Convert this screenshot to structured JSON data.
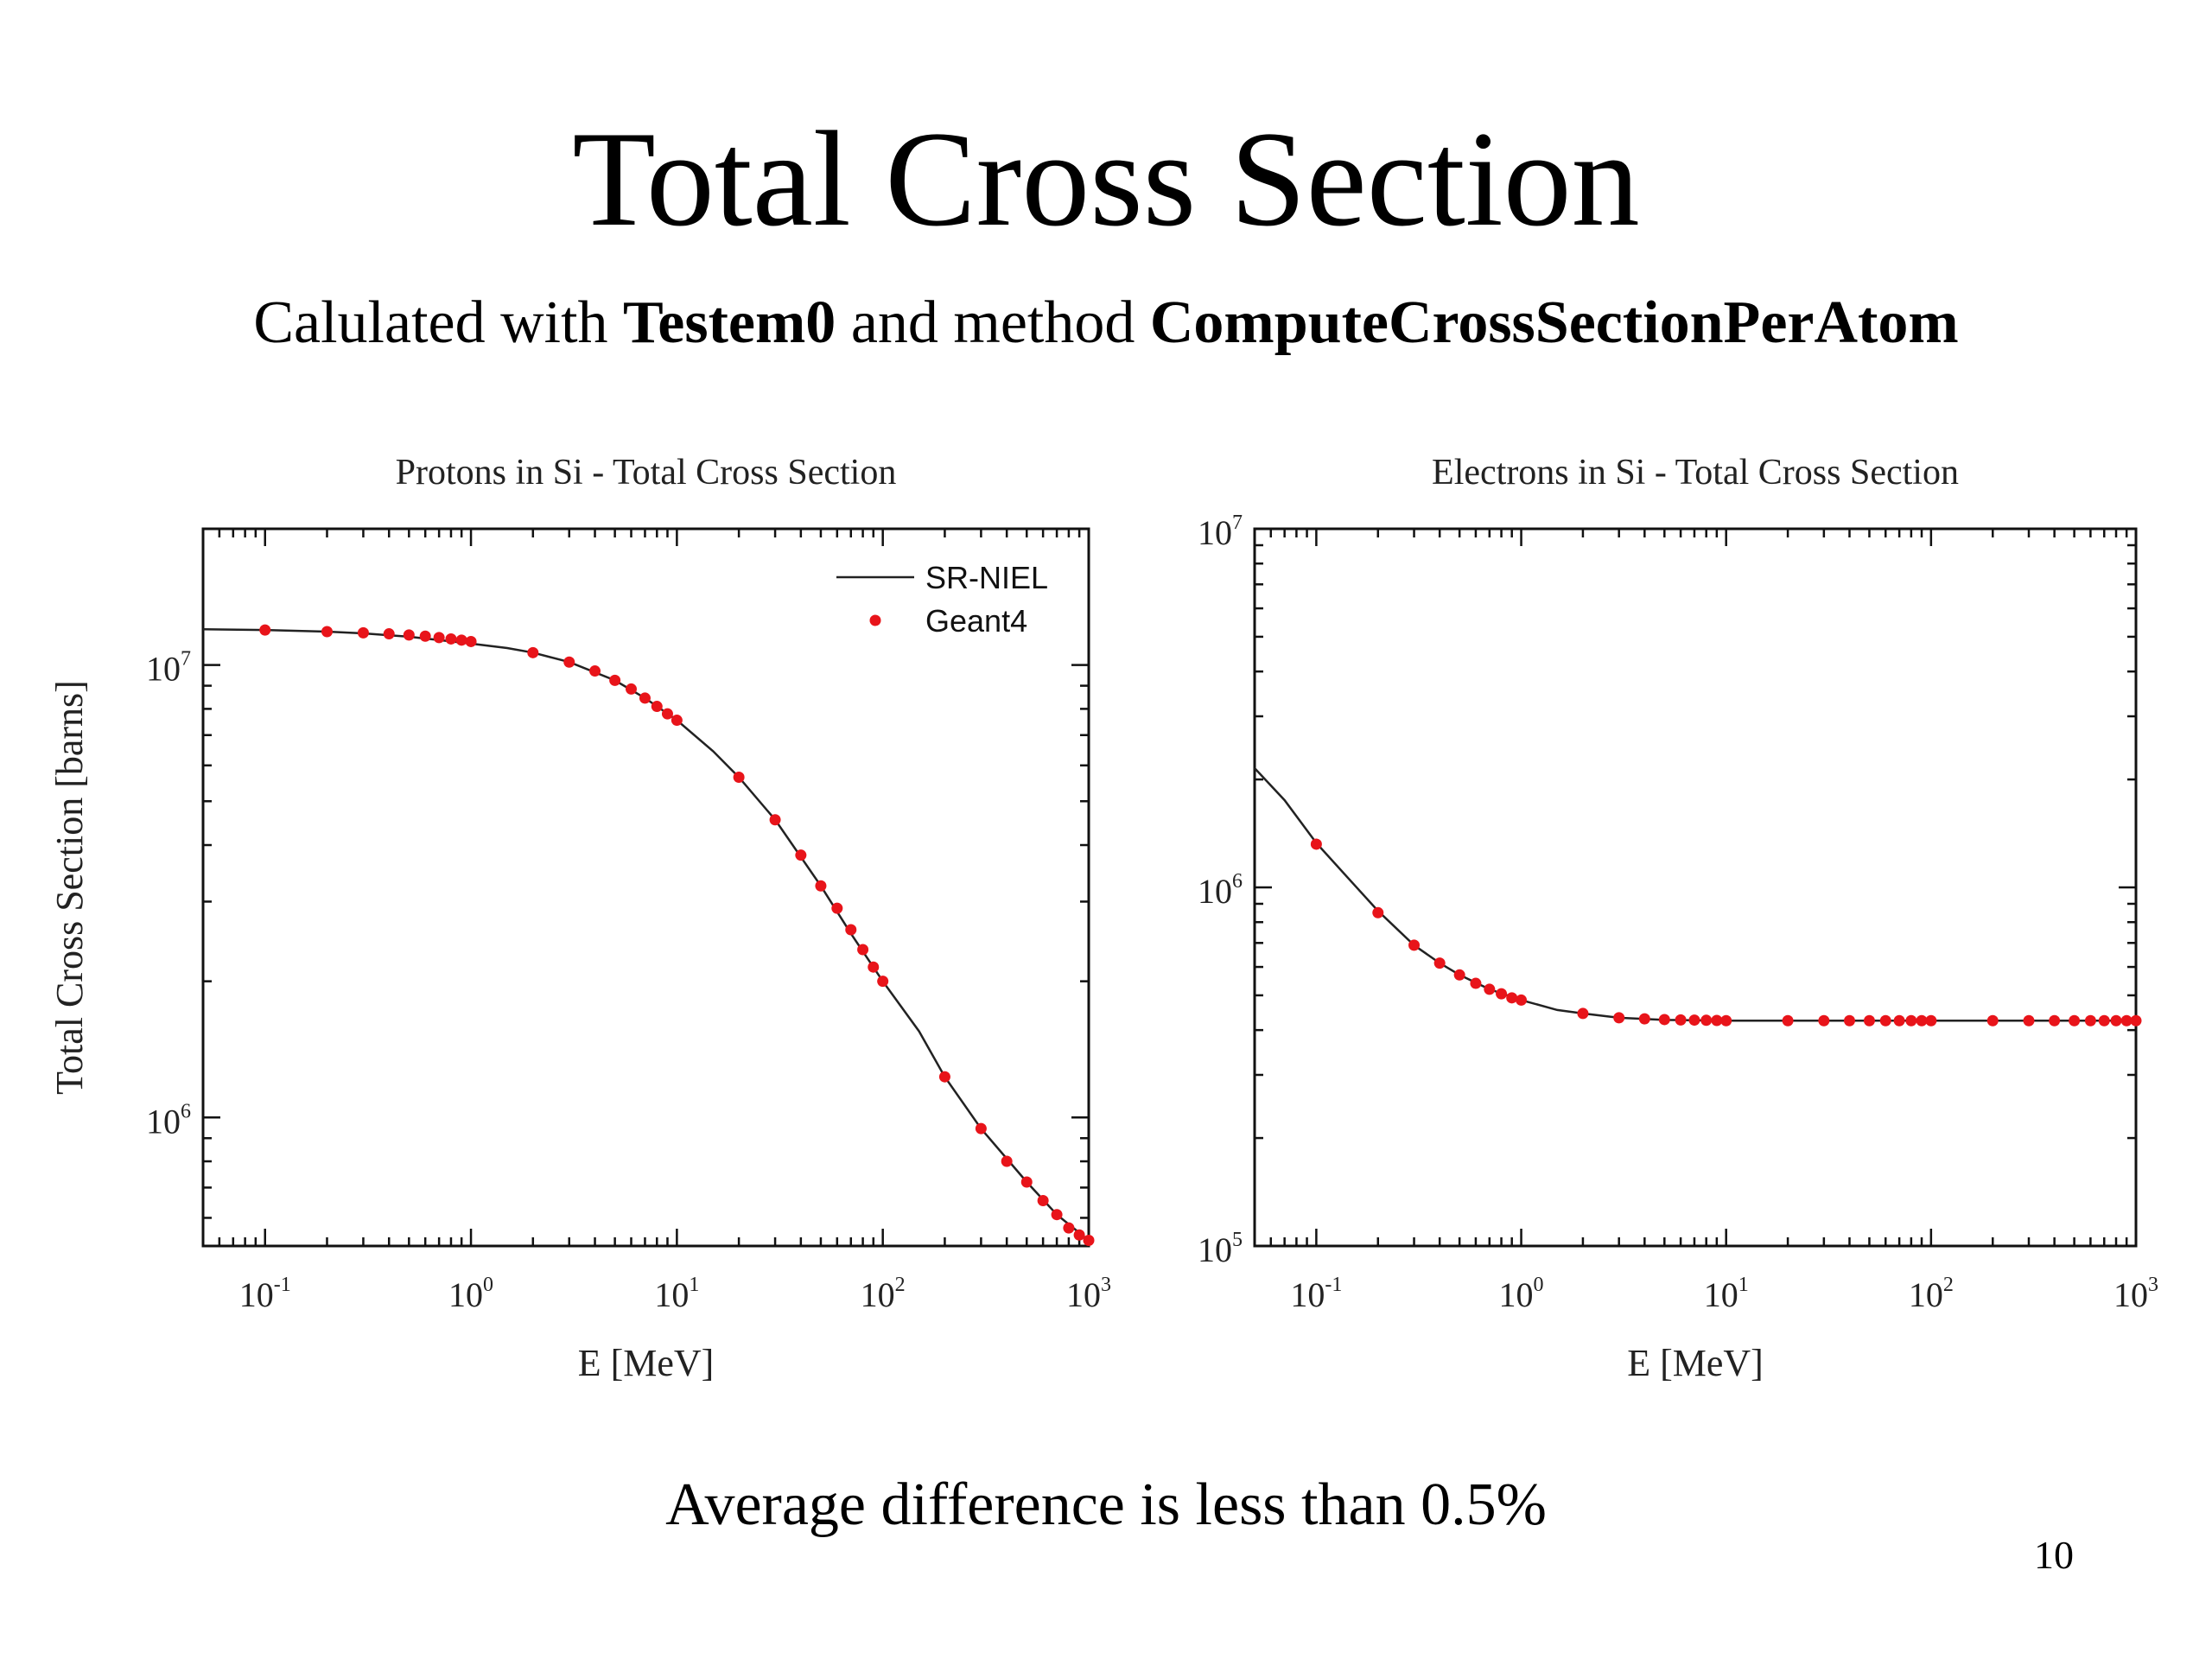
{
  "slide": {
    "title": "Total Cross Section",
    "subtitle": {
      "prefix": "Calulated with ",
      "tool": "Testem0",
      "middle": " and method ",
      "method": "ComputeCrossSectionPerAtom"
    },
    "footer": "Average difference is less than 0.5%",
    "page_number": "10"
  },
  "colors": {
    "curve": "#222222",
    "points": "#e8141a",
    "axes": "#111111"
  },
  "chart_data": [
    {
      "type": "line",
      "title": "Protons in Si - Total Cross Section",
      "xlabel": "E [MeV]",
      "ylabel": "Total Cross Section [barns]",
      "x_scale": "log",
      "y_scale": "log",
      "xlim": [
        0.05,
        1000
      ],
      "ylim": [
        520000,
        20000000
      ],
      "x_ticks": [
        0.1,
        1,
        10,
        100,
        1000
      ],
      "x_tick_labels": [
        [
          "10",
          "-1"
        ],
        [
          "10",
          "0"
        ],
        [
          "10",
          "1"
        ],
        [
          "10",
          "2"
        ],
        [
          "10",
          "3"
        ]
      ],
      "y_ticks": [
        1000000,
        10000000
      ],
      "y_tick_labels": [
        [
          "10",
          "6"
        ],
        [
          "10",
          "7"
        ]
      ],
      "legend": {
        "position": "top-right",
        "entries": [
          {
            "label": "SR-NIEL",
            "marker": "line"
          },
          {
            "label": "Geant4",
            "marker": "dot"
          }
        ]
      },
      "grid": false,
      "series": [
        {
          "name": "SR-NIEL",
          "style": "line",
          "x": [
            0.05,
            0.1,
            0.2,
            0.3,
            0.5,
            0.7,
            1,
            1.5,
            2,
            3,
            5,
            7,
            10,
            15,
            20,
            30,
            50,
            70,
            100,
            150,
            200,
            300,
            500,
            700,
            1000
          ],
          "y": [
            12000000,
            11950000,
            11850000,
            11750000,
            11550000,
            11350000,
            11150000,
            10900000,
            10650000,
            10150000,
            9250000,
            8450000,
            7550000,
            6450000,
            5650000,
            4550000,
            3250000,
            2550000,
            2000000,
            1550000,
            1230000,
            945000,
            720000,
            610000,
            535000
          ]
        },
        {
          "name": "Geant4",
          "style": "points",
          "x": [
            0.1,
            0.2,
            0.3,
            0.4,
            0.5,
            0.6,
            0.7,
            0.8,
            0.9,
            1,
            2,
            3,
            4,
            5,
            6,
            7,
            8,
            9,
            10,
            20,
            30,
            40,
            50,
            60,
            70,
            80,
            90,
            100,
            200,
            300,
            400,
            500,
            600,
            700,
            800,
            900,
            1000
          ],
          "y": [
            11950000,
            11850000,
            11780000,
            11720000,
            11650000,
            11580000,
            11500000,
            11420000,
            11350000,
            11270000,
            10650000,
            10150000,
            9700000,
            9250000,
            8850000,
            8450000,
            8100000,
            7800000,
            7550000,
            5650000,
            4550000,
            3800000,
            3250000,
            2900000,
            2600000,
            2350000,
            2150000,
            2000000,
            1230000,
            945000,
            800000,
            720000,
            655000,
            610000,
            570000,
            550000,
            535000
          ]
        }
      ]
    },
    {
      "type": "line",
      "title": "Electrons in Si - Total Cross Section",
      "xlabel": "E [MeV]",
      "ylabel": "",
      "x_scale": "log",
      "y_scale": "log",
      "xlim": [
        0.05,
        1000
      ],
      "ylim": [
        100000,
        10000000
      ],
      "x_ticks": [
        0.1,
        1,
        10,
        100,
        1000
      ],
      "x_tick_labels": [
        [
          "10",
          "-1"
        ],
        [
          "10",
          "0"
        ],
        [
          "10",
          "1"
        ],
        [
          "10",
          "2"
        ],
        [
          "10",
          "3"
        ]
      ],
      "y_ticks": [
        100000,
        1000000,
        10000000
      ],
      "y_tick_labels": [
        [
          "10",
          "5"
        ],
        [
          "10",
          "6"
        ],
        [
          "10",
          "7"
        ]
      ],
      "grid": false,
      "series": [
        {
          "name": "SR-NIEL",
          "style": "line",
          "x": [
            0.05,
            0.07,
            0.1,
            0.15,
            0.2,
            0.3,
            0.4,
            0.5,
            0.7,
            1,
            1.5,
            2,
            3,
            5,
            10,
            100,
            1000
          ],
          "y": [
            2150000,
            1750000,
            1330000,
            1030000,
            860000,
            690000,
            615000,
            570000,
            520000,
            485000,
            455000,
            445000,
            433000,
            427000,
            425000,
            425000,
            425000
          ]
        },
        {
          "name": "Geant4",
          "style": "points",
          "x": [
            0.1,
            0.2,
            0.3,
            0.4,
            0.5,
            0.6,
            0.7,
            0.8,
            0.9,
            1,
            2,
            3,
            4,
            5,
            6,
            7,
            8,
            9,
            10,
            20,
            30,
            40,
            50,
            60,
            70,
            80,
            90,
            100,
            200,
            300,
            400,
            500,
            600,
            700,
            800,
            900,
            1000
          ],
          "y": [
            1320000,
            850000,
            690000,
            615000,
            570000,
            540000,
            520000,
            505000,
            492000,
            485000,
            445000,
            433000,
            430000,
            428000,
            427000,
            426500,
            426000,
            425500,
            425000,
            425000,
            425000,
            425000,
            425000,
            425000,
            425000,
            425000,
            425000,
            425000,
            425000,
            425000,
            425000,
            425000,
            425000,
            425000,
            425000,
            425000,
            425000
          ]
        }
      ]
    }
  ]
}
